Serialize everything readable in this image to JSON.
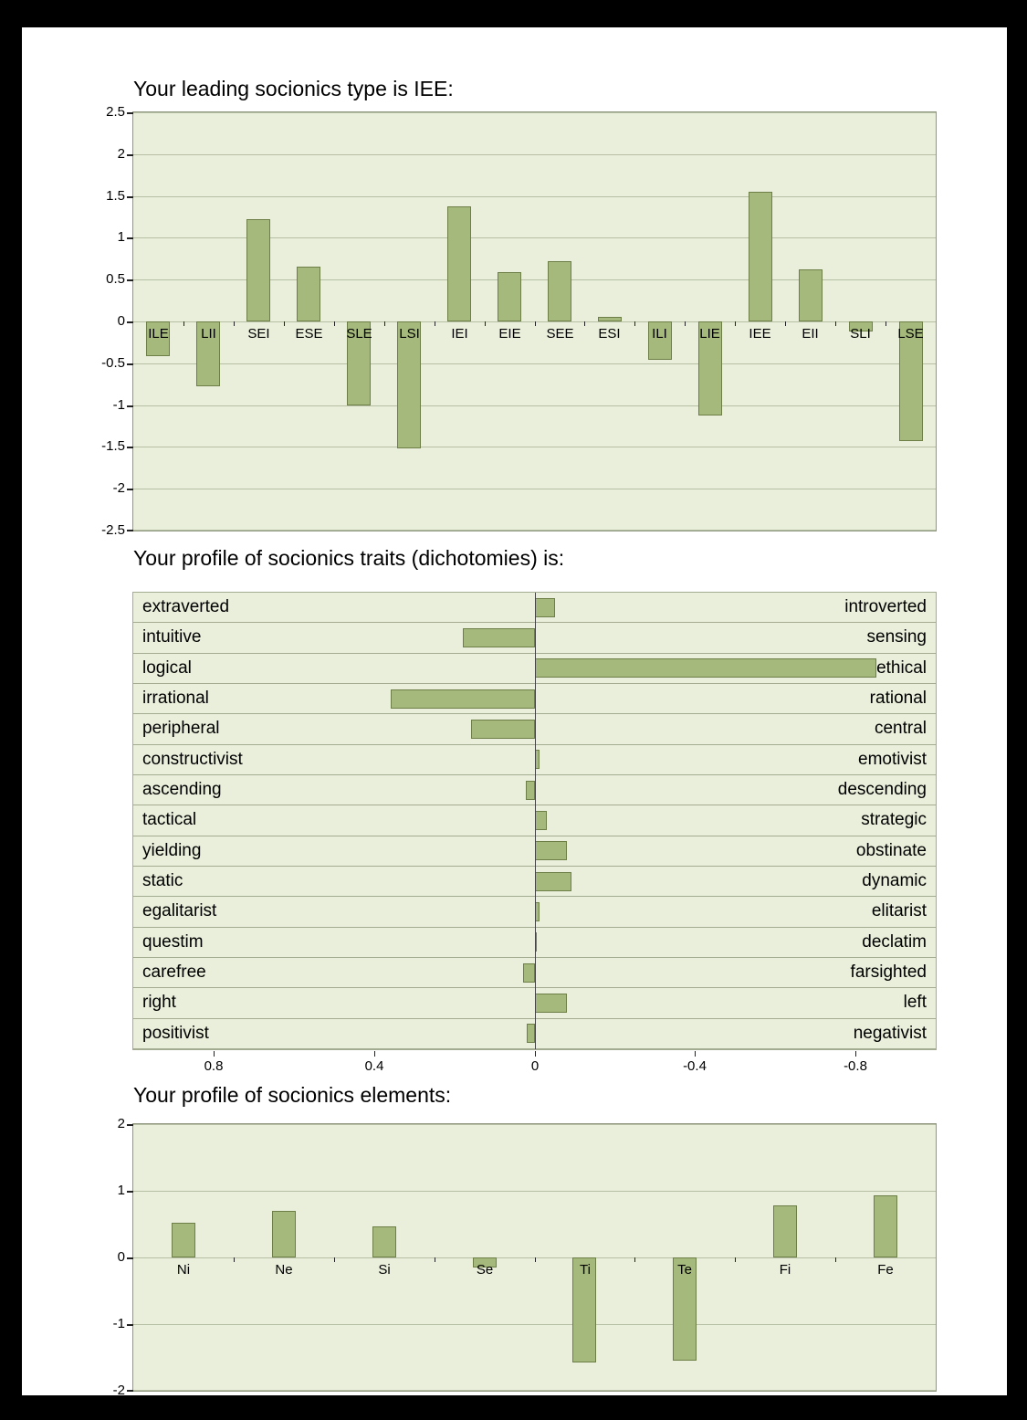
{
  "colors": {
    "frame": "#000000",
    "page_bg": "#ffffff",
    "plot_bg": "#e9efda",
    "bar_fill": "#a5b97c",
    "bar_border": "#6d7f46",
    "gridline": "#b6bea4",
    "plot_border": "#8f977e",
    "row_divider": "#a3ab91",
    "zero_line": "#444444",
    "axis_text": "#000000"
  },
  "chart_data": [
    {
      "id": "types",
      "type": "bar",
      "title": "Your leading socionics type is IEE:",
      "categories": [
        "ILE",
        "LII",
        "SEI",
        "ESE",
        "SLE",
        "LSI",
        "IEI",
        "EIE",
        "SEE",
        "ESI",
        "ILI",
        "LIE",
        "IEE",
        "EII",
        "SLI",
        "LSE"
      ],
      "values": [
        -0.42,
        -0.78,
        1.22,
        0.65,
        -1.0,
        -1.52,
        1.38,
        0.59,
        0.72,
        0.05,
        -0.46,
        -1.12,
        1.55,
        0.62,
        -0.12,
        -1.43
      ],
      "ylim": [
        -2.5,
        2.5
      ],
      "yticks": [
        2.5,
        2,
        1.5,
        1,
        0.5,
        0,
        -0.5,
        -1,
        -1.5,
        -2,
        -2.5
      ],
      "grid": true,
      "legend": "none"
    },
    {
      "id": "dichotomies",
      "type": "bar",
      "orientation": "horizontal",
      "title": "Your profile of socionics traits (dichotomies) is:",
      "rows": [
        {
          "left": "extraverted",
          "right": "introverted",
          "value": -0.05
        },
        {
          "left": "intuitive",
          "right": "sensing",
          "value": 0.18
        },
        {
          "left": "logical",
          "right": "ethical",
          "value": -0.85
        },
        {
          "left": "irrational",
          "right": "rational",
          "value": 0.36
        },
        {
          "left": "peripheral",
          "right": "central",
          "value": 0.16
        },
        {
          "left": "constructivist",
          "right": "emotivist",
          "value": -0.012
        },
        {
          "left": "ascending",
          "right": "descending",
          "value": 0.022
        },
        {
          "left": "tactical",
          "right": "strategic",
          "value": -0.03
        },
        {
          "left": "yielding",
          "right": "obstinate",
          "value": -0.08
        },
        {
          "left": "static",
          "right": "dynamic",
          "value": -0.09
        },
        {
          "left": "egalitarist",
          "right": "elitarist",
          "value": -0.012
        },
        {
          "left": "questim",
          "right": "declatim",
          "value": -0.004
        },
        {
          "left": "carefree",
          "right": "farsighted",
          "value": 0.03
        },
        {
          "left": "right",
          "right": "left",
          "value": -0.08
        },
        {
          "left": "positivist",
          "right": "negativist",
          "value": 0.02
        }
      ],
      "xticks": [
        0.8,
        0.4,
        0,
        -0.4,
        -0.8
      ],
      "xlim": [
        1,
        -1
      ],
      "grid": false
    },
    {
      "id": "elements",
      "type": "bar",
      "title": "Your profile of socionics elements:",
      "categories": [
        "Ni",
        "Ne",
        "Si",
        "Se",
        "Ti",
        "Te",
        "Fi",
        "Fe"
      ],
      "values": [
        0.52,
        0.7,
        0.47,
        -0.15,
        -1.58,
        -1.55,
        0.78,
        0.93
      ],
      "ylim": [
        -2,
        2
      ],
      "yticks": [
        2,
        1,
        0,
        -1,
        -2
      ],
      "grid": true,
      "legend": "none"
    }
  ]
}
